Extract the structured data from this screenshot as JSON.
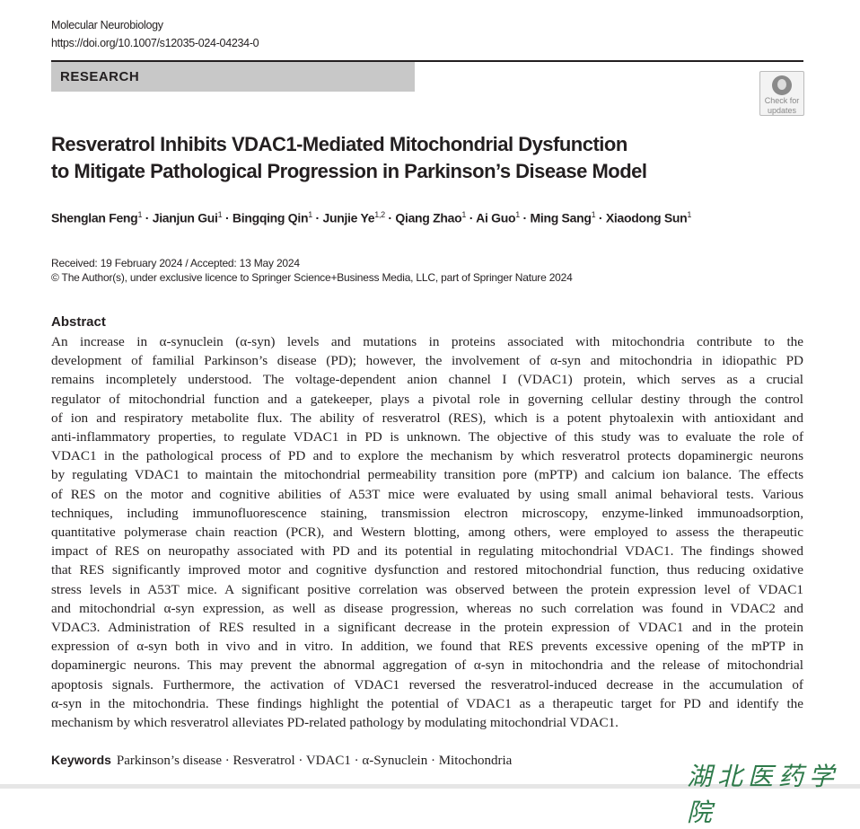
{
  "header": {
    "journal": "Molecular Neurobiology",
    "doi": "https://doi.org/10.1007/s12035-024-04234-0",
    "section": "RESEARCH",
    "check_updates": [
      "Check for",
      "updates"
    ]
  },
  "article": {
    "title_lines": [
      "Resveratrol Inhibits VDAC1-Mediated Mitochondrial Dysfunction",
      "to Mitigate Pathological Progression in Parkinson’s Disease Model"
    ],
    "authors": [
      {
        "name": "Shenglan Feng",
        "aff": "1"
      },
      {
        "name": "Jianjun Gui",
        "aff": "1"
      },
      {
        "name": "Bingqing Qin",
        "aff": "1"
      },
      {
        "name": "Junjie Ye",
        "aff": "1,2"
      },
      {
        "name": "Qiang Zhao",
        "aff": "1"
      },
      {
        "name": "Ai Guo",
        "aff": "1"
      },
      {
        "name": "Ming Sang",
        "aff": "1"
      },
      {
        "name": "Xiaodong Sun",
        "aff": "1"
      }
    ],
    "separator": " · ",
    "received": "Received: 19 February 2024 / Accepted: 13 May 2024",
    "copyright": "© The Author(s), under exclusive licence to Springer Science+Business Media, LLC, part of Springer Nature 2024",
    "abstract_heading": "Abstract",
    "abstract_lines": [
      "An increase in α-synuclein (α-syn) levels and mutations in proteins associated with mitochondria contribute to the",
      "development of familial Parkinson’s disease (PD); however, the involvement of α-syn and mitochondria in idiopathic PD",
      "remains incompletely understood. The voltage-dependent anion channel I (VDAC1) protein, which serves as a crucial",
      "regulator of mitochondrial function and a gatekeeper, plays a pivotal role in governing cellular destiny through the control",
      "of ion and respiratory metabolite flux. The ability of resveratrol (RES), which is a potent phytoalexin with antioxidant and",
      "anti-inflammatory properties, to regulate VDAC1 in PD is unknown. The objective of this study was to evaluate the role of",
      "VDAC1 in the pathological process of PD and to explore the mechanism by which resveratrol protects dopaminergic neurons",
      "by regulating VDAC1 to maintain the mitochondrial permeability transition pore (mPTP) and calcium ion balance. The effects",
      "of RES on the motor and cognitive abilities of A53T mice were evaluated by using small animal behavioral tests. Various",
      "techniques, including immunofluorescence staining, transmission electron microscopy, enzyme-linked immunoadsorption,",
      "quantitative polymerase chain reaction (PCR), and Western blotting, among others, were employed to assess the therapeutic",
      "impact of RES on neuropathy associated with PD and its potential in regulating mitochondrial VDAC1. The findings showed",
      "that RES significantly improved motor and cognitive dysfunction and restored mitochondrial function, thus reducing oxidative",
      "stress levels in A53T mice. A significant positive correlation was observed between the protein expression level of VDAC1",
      "and mitochondrial α-syn expression, as well as disease progression, whereas no such correlation was found in VDAC2 and",
      "VDAC3. Administration of RES resulted in a significant decrease in the protein expression of VDAC1 and in the protein",
      "expression of α-syn both in vivo and in vitro. In addition, we found that RES prevents excessive opening of the mPTP in",
      "dopaminergic neurons. This may prevent the abnormal aggregation of α-syn in mitochondria and the release of mitochondrial",
      "apoptosis signals. Furthermore, the activation of VDAC1 reversed the resveratrol-induced decrease in the accumulation of",
      "α-syn in the mitochondria. These findings highlight the potential of VDAC1 as a therapeutic target for PD and identify the",
      "mechanism by which resveratrol alleviates PD-related pathology by modulating mitochondrial VDAC1."
    ],
    "keywords_label": "Keywords",
    "keywords": "Parkinson’s disease · Resveratrol · VDAC1 · α-Synuclein · Mitochondria"
  },
  "watermark": "湖北医药学院",
  "colors": {
    "watermark": "#2e7a4a",
    "section_band": "#c8c8c8"
  }
}
